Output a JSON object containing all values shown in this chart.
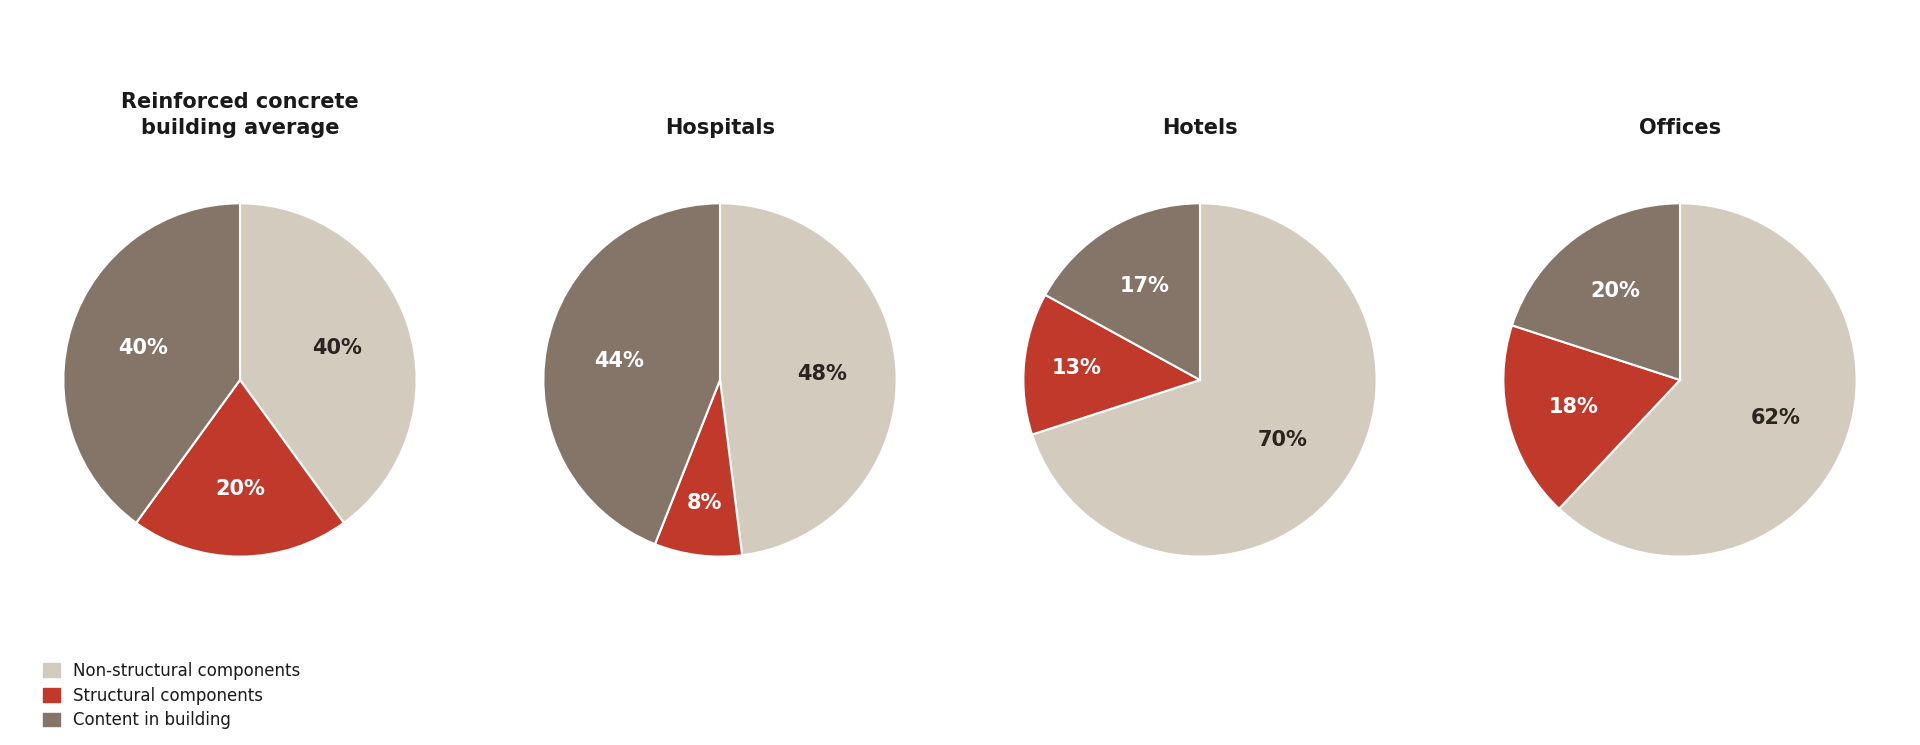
{
  "charts": [
    {
      "title": "Reinforced concrete\nbuilding average",
      "values": [
        40,
        20,
        40
      ],
      "labels": [
        "40%",
        "20%",
        "40%"
      ],
      "colors": [
        "#d4cbbf",
        "#c0392b",
        "#857569"
      ],
      "startangle": 90,
      "text_colors": [
        "#2a2520",
        "#ffffff",
        "#ffffff"
      ]
    },
    {
      "title": "Hospitals",
      "values": [
        48,
        8,
        44
      ],
      "labels": [
        "48%",
        "8%",
        "44%"
      ],
      "colors": [
        "#d4cbbf",
        "#c0392b",
        "#857569"
      ],
      "startangle": 90,
      "text_colors": [
        "#2a2520",
        "#ffffff",
        "#ffffff"
      ]
    },
    {
      "title": "Hotels",
      "values": [
        70,
        13,
        17
      ],
      "labels": [
        "70%",
        "13%",
        "17%"
      ],
      "colors": [
        "#d4cbbf",
        "#c0392b",
        "#857569"
      ],
      "startangle": 90,
      "text_colors": [
        "#2a2520",
        "#ffffff",
        "#ffffff"
      ]
    },
    {
      "title": "Offices",
      "values": [
        62,
        18,
        20
      ],
      "labels": [
        "62%",
        "18%",
        "20%"
      ],
      "colors": [
        "#d4cbbf",
        "#c0392b",
        "#857569"
      ],
      "startangle": 90,
      "text_colors": [
        "#2a2520",
        "#ffffff",
        "#ffffff"
      ]
    }
  ],
  "legend_labels": [
    "Non-structural components",
    "Structural components",
    "Content in building"
  ],
  "legend_colors": [
    "#d4cbbf",
    "#c0392b",
    "#857569"
  ],
  "bg_color": "#ffffff",
  "text_color": "#1a1a1a",
  "label_fontsize": 15,
  "title_fontsize": 15
}
